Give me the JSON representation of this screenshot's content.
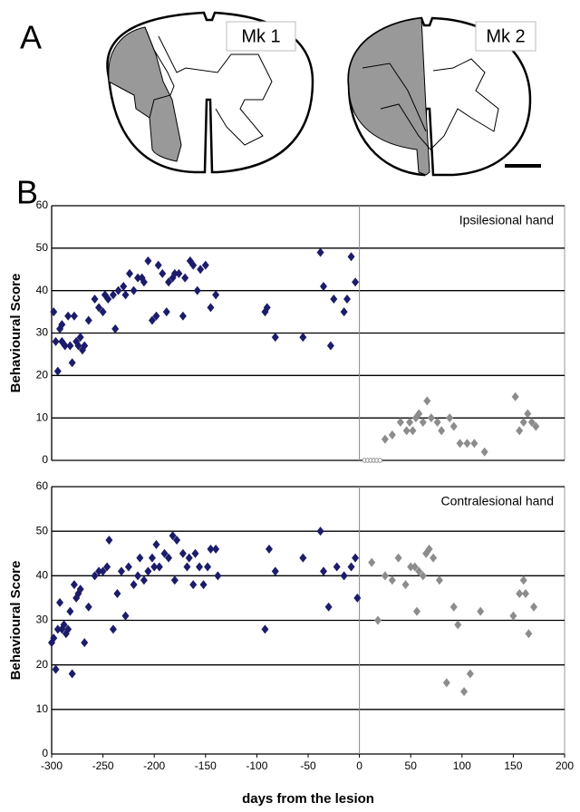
{
  "panel_a": {
    "letter": "A",
    "labels": [
      "Mk 1",
      "Mk 2"
    ]
  },
  "panel_b": {
    "letter": "B"
  },
  "chart_data": [
    {
      "type": "scatter",
      "ylabel": "Behavioural Score",
      "annotation": "Ipsilesional hand",
      "xlim": [
        -300,
        200
      ],
      "ylim": [
        0,
        60
      ],
      "yticks": [
        0,
        10,
        20,
        30,
        40,
        50,
        60
      ],
      "grid": true,
      "vline": 0,
      "series": [
        {
          "color": "#1c1c6b",
          "marker": "diamond",
          "x": [
            -298,
            -296,
            -294,
            -292,
            -290,
            -290,
            -287,
            -284,
            -282,
            -280,
            -278,
            -276,
            -274,
            -272,
            -270,
            -268,
            -264,
            -258,
            -254,
            -250,
            -248,
            -245,
            -240,
            -238,
            -235,
            -230,
            -228,
            -224,
            -220,
            -216,
            -212,
            -210,
            -206,
            -202,
            -198,
            -196,
            -192,
            -188,
            -186,
            -182,
            -180,
            -176,
            -172,
            -170,
            -165,
            -162,
            -158,
            -155,
            -150,
            -145,
            -140,
            -92,
            -90,
            -82,
            -55,
            -38,
            -35,
            -28,
            -25,
            -15,
            -12,
            -8,
            -4
          ],
          "values": [
            35,
            28,
            21,
            31,
            32,
            28,
            27,
            34,
            27,
            23,
            34,
            28,
            27,
            29,
            26,
            27,
            33,
            38,
            36,
            35,
            39,
            38,
            39,
            31,
            40,
            41,
            39,
            44,
            40,
            43,
            43,
            42,
            47,
            33,
            34,
            46,
            44,
            35,
            42,
            43,
            44,
            44,
            34,
            43,
            47,
            46,
            40,
            45,
            46,
            36,
            39,
            35,
            36,
            29,
            29,
            49,
            41,
            27,
            38,
            35,
            38,
            48,
            42
          ]
        },
        {
          "color": "#8c8c8c",
          "marker": "circle-open",
          "x": [
            5,
            8,
            11,
            14,
            17,
            20
          ],
          "values": [
            0,
            0,
            0,
            0,
            0,
            0
          ]
        },
        {
          "color": "#8c8c8c",
          "marker": "diamond",
          "x": [
            25,
            32,
            40,
            46,
            49,
            52,
            55,
            58,
            62,
            66,
            70,
            76,
            80,
            88,
            92,
            98,
            105,
            112,
            122,
            152,
            156,
            160,
            164,
            168,
            172
          ],
          "values": [
            5,
            6,
            9,
            7,
            9,
            7,
            10,
            11,
            9,
            14,
            10,
            9,
            7,
            10,
            8,
            4,
            4,
            4,
            2,
            15,
            7,
            9,
            11,
            9,
            8
          ]
        }
      ]
    },
    {
      "type": "scatter",
      "ylabel": "Behavioural Score",
      "xlabel": "days from the lesion",
      "annotation": "Contralesional hand",
      "xlim": [
        -300,
        200
      ],
      "xticks": [
        -300,
        -250,
        -200,
        -150,
        -100,
        -50,
        0,
        50,
        100,
        150,
        200
      ],
      "ylim": [
        0,
        60
      ],
      "yticks": [
        0,
        10,
        20,
        30,
        40,
        50,
        60
      ],
      "grid": true,
      "vline": 0,
      "series": [
        {
          "color": "#1c1c6b",
          "marker": "diamond",
          "x": [
            -300,
            -298,
            -296,
            -294,
            -292,
            -290,
            -288,
            -286,
            -284,
            -282,
            -280,
            -278,
            -276,
            -274,
            -272,
            -268,
            -264,
            -258,
            -254,
            -250,
            -246,
            -244,
            -240,
            -236,
            -232,
            -228,
            -225,
            -220,
            -216,
            -214,
            -210,
            -206,
            -202,
            -200,
            -198,
            -195,
            -190,
            -186,
            -182,
            -180,
            -178,
            -172,
            -168,
            -166,
            -162,
            -160,
            -156,
            -152,
            -148,
            -145,
            -140,
            -138,
            -92,
            -88,
            -82,
            -55,
            -38,
            -35,
            -30,
            -22,
            -15,
            -8,
            -4,
            -2
          ],
          "values": [
            25,
            26,
            19,
            28,
            34,
            28,
            29,
            27,
            28,
            32,
            18,
            38,
            35,
            36,
            37,
            25,
            33,
            40,
            41,
            41,
            42,
            48,
            28,
            36,
            41,
            31,
            42,
            38,
            40,
            44,
            39,
            41,
            44,
            42,
            47,
            42,
            45,
            44,
            49,
            39,
            48,
            45,
            42,
            44,
            38,
            45,
            42,
            38,
            42,
            46,
            46,
            40,
            28,
            46,
            41,
            44,
            50,
            41,
            33,
            42,
            40,
            42,
            44,
            35
          ]
        },
        {
          "color": "#8c8c8c",
          "marker": "diamond",
          "x": [
            12,
            18,
            25,
            32,
            38,
            45,
            50,
            54,
            56,
            58,
            62,
            65,
            68,
            72,
            78,
            85,
            92,
            96,
            102,
            108,
            118,
            150,
            156,
            160,
            162,
            165,
            170
          ],
          "values": [
            43,
            30,
            40,
            39,
            44,
            38,
            42,
            42,
            32,
            41,
            40,
            45,
            46,
            44,
            39,
            16,
            33,
            29,
            14,
            18,
            32,
            31,
            36,
            39,
            36,
            27,
            33
          ]
        }
      ]
    }
  ]
}
